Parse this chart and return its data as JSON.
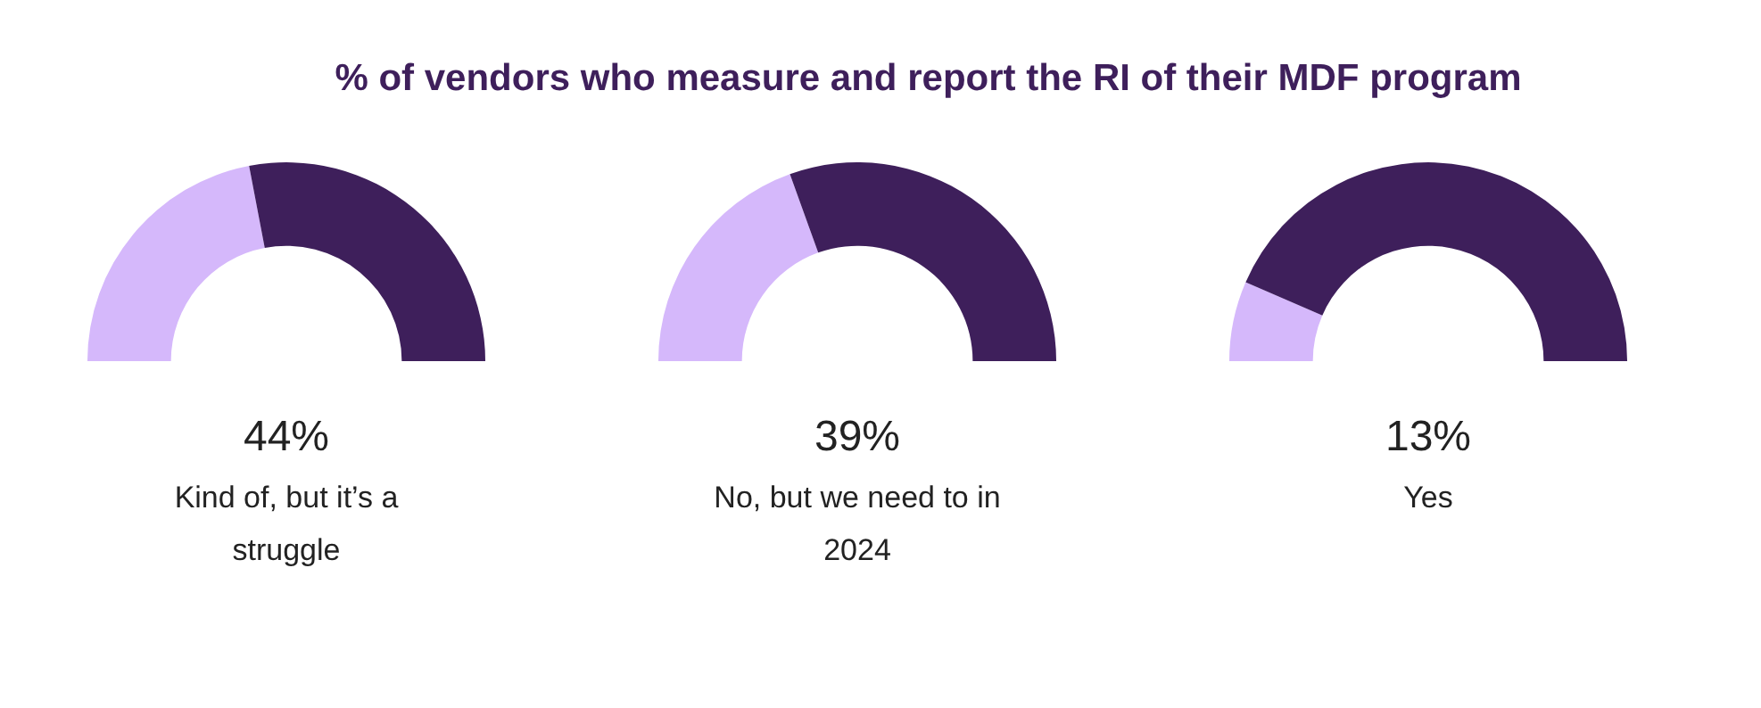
{
  "chart_data": [
    {
      "type": "donut",
      "title": "% of vendors who measure and report the RI of their MDF program",
      "categories": [
        null,
        null
      ],
      "values": [
        44,
        56
      ],
      "colors": [
        "#d5b8fb",
        "#3e1f5b"
      ],
      "annotations": [
        "44%",
        "Kind of, but it’s a struggle"
      ]
    },
    {
      "type": "donut",
      "categories": [
        null,
        null
      ],
      "values": [
        39,
        61
      ],
      "colors": [
        "#d5b8fb",
        "#3e1f5b"
      ],
      "annotations": [
        "39%",
        "No, but we need to in 2024"
      ]
    },
    {
      "type": "donut",
      "categories": [
        null,
        null
      ],
      "values": [
        13,
        87
      ],
      "colors": [
        "#d5b8fb",
        "#3e1f5b"
      ],
      "annotations": [
        "13%",
        "Yes"
      ]
    }
  ]
}
